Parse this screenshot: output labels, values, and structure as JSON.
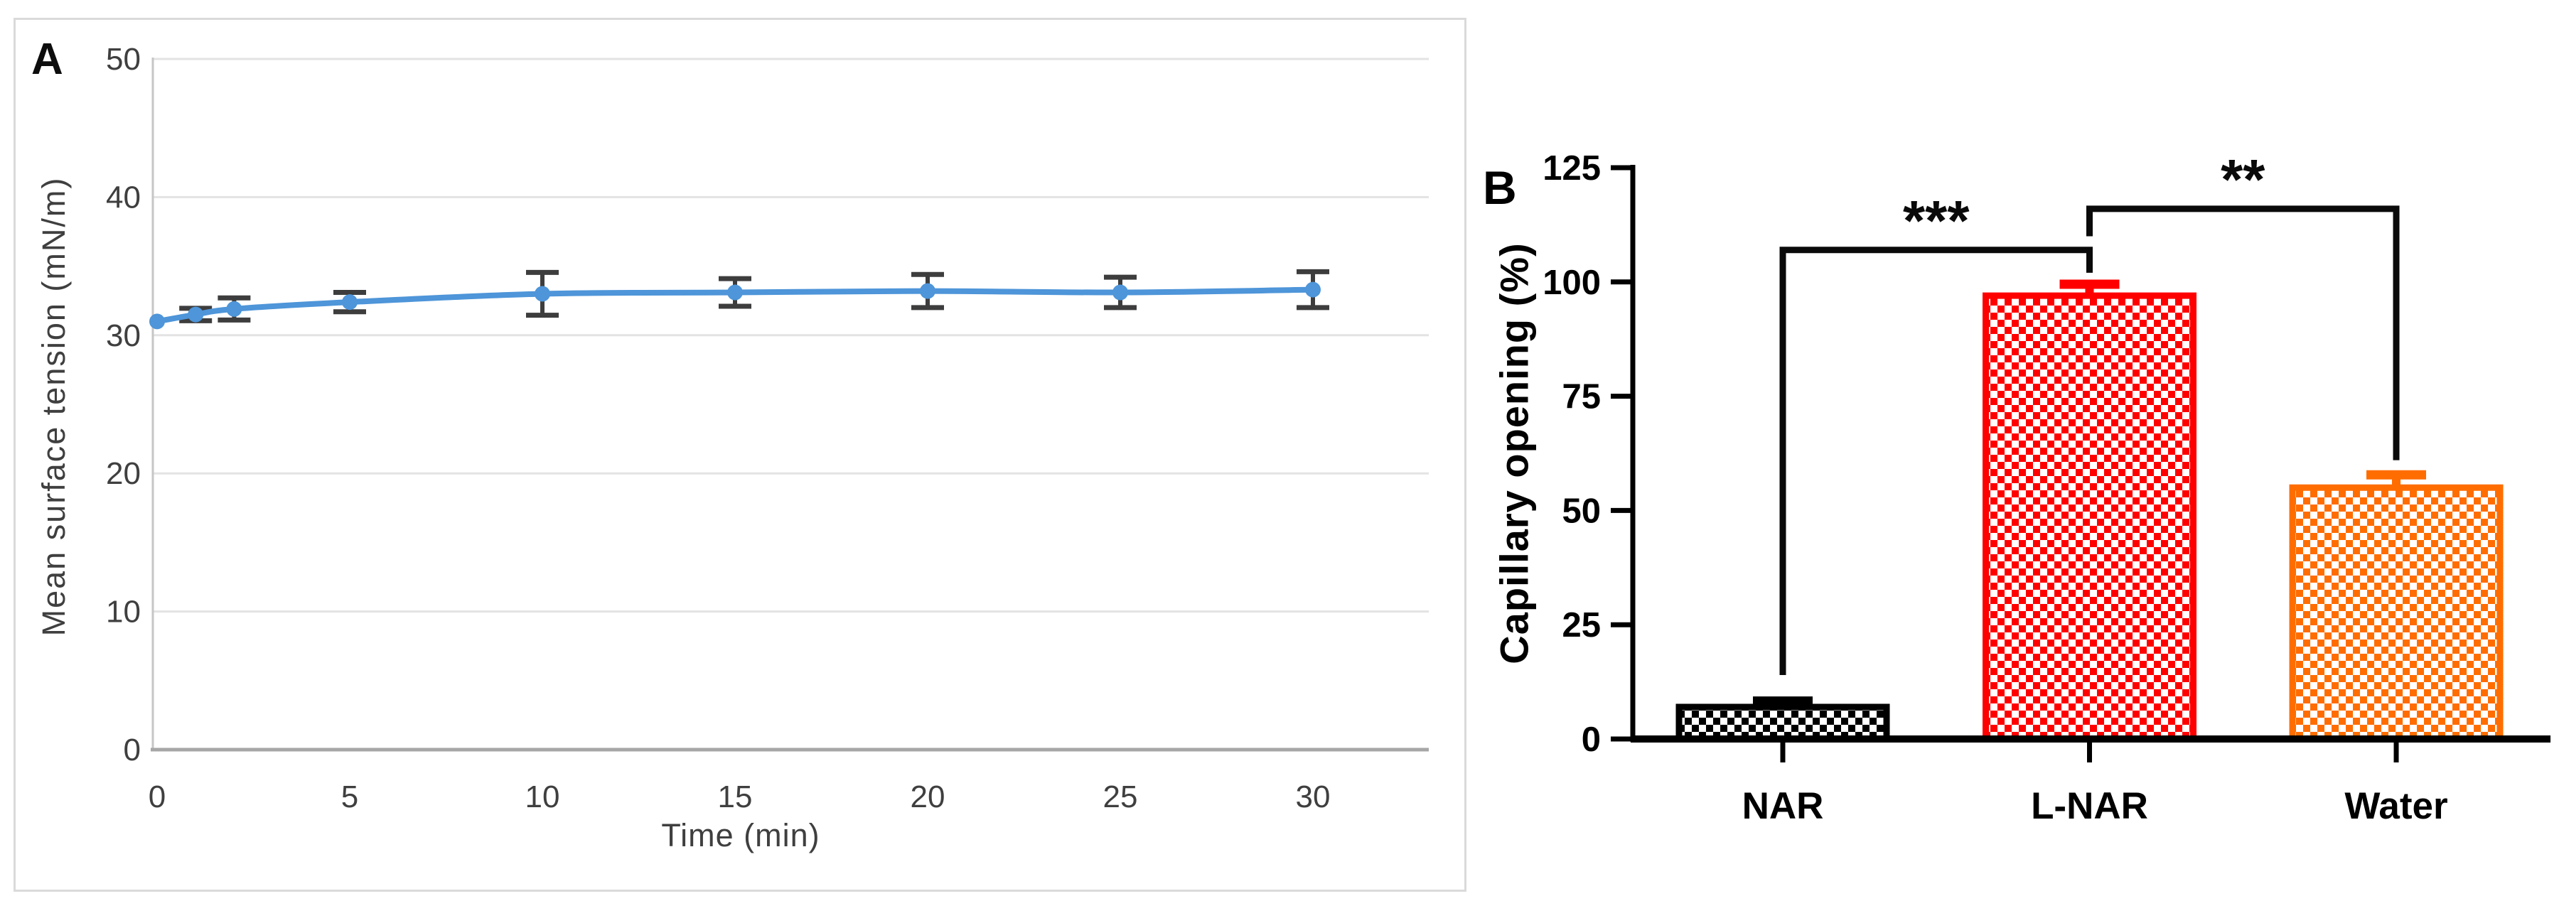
{
  "figure": {
    "panel_a_label": "A",
    "panel_b_label": "B"
  },
  "chart_data": [
    {
      "type": "line",
      "panel": "A",
      "title": "",
      "xlabel": "Time (min)",
      "ylabel": "Mean surface tension (mN/m)",
      "x": [
        0,
        1,
        2,
        5,
        10,
        15,
        20,
        25,
        30
      ],
      "y": [
        31.0,
        31.5,
        31.9,
        32.4,
        33.0,
        33.1,
        33.2,
        33.1,
        33.3
      ],
      "y_err": [
        0,
        0.45,
        0.8,
        0.7,
        1.55,
        1.0,
        1.2,
        1.1,
        1.3
      ],
      "xlim": [
        0,
        33
      ],
      "ylim": [
        0,
        50
      ],
      "x_ticks": [
        0,
        5,
        10,
        15,
        20,
        25,
        30
      ],
      "y_ticks": [
        0,
        10,
        20,
        30,
        40,
        50
      ],
      "grid": "horizontal-light",
      "legend": "none",
      "line_color": "#4e95d9",
      "marker": "circle",
      "error_bar_color": "#3d3d3d",
      "gridline_color": "#e3e3e3",
      "axis_color": "#a6a6a6",
      "tick_label_color": "#3f3f3f"
    },
    {
      "type": "bar",
      "panel": "B",
      "title": "",
      "xlabel": "",
      "ylabel": "Capillary opening (%)",
      "categories": [
        "NAR",
        "L-NAR",
        "Water"
      ],
      "values": [
        7,
        97,
        55
      ],
      "errors_up": [
        1.3,
        2.5,
        2.8
      ],
      "bar_colors": [
        "#000000",
        "#ff0000",
        "#ff6d00"
      ],
      "bar_fill_pattern": "checkerboard-white",
      "ylim": [
        0,
        125
      ],
      "y_ticks": [
        0,
        25,
        50,
        75,
        100,
        125
      ],
      "axis_color": "#000000",
      "significance": [
        {
          "label": "***",
          "from": "NAR",
          "to": "L-NAR",
          "bracket_y": 107,
          "from_drop_to": 14,
          "to_drop_to": 102
        },
        {
          "label": "**",
          "from": "L-NAR",
          "to": "Water",
          "bracket_y": 116,
          "from_drop_to": 110,
          "to_drop_to": 61
        }
      ]
    }
  ]
}
